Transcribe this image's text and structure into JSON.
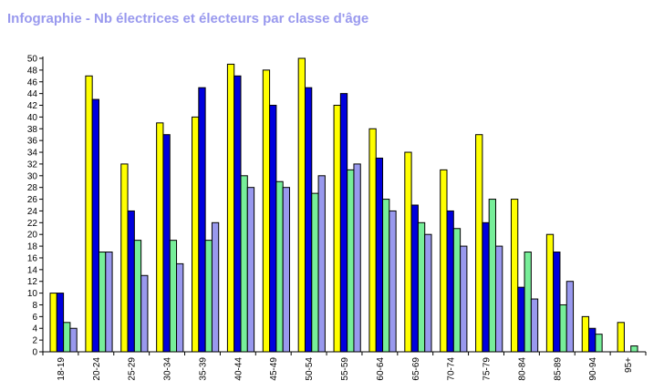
{
  "chart_data": {
    "type": "bar",
    "title": "Infographie - Nb électrices et électeurs par classe d'âge",
    "xlabel": "",
    "ylabel": "",
    "ylim": [
      0,
      50
    ],
    "yticks": [
      0,
      2,
      4,
      6,
      8,
      10,
      12,
      14,
      16,
      18,
      20,
      22,
      24,
      26,
      28,
      30,
      32,
      34,
      36,
      38,
      40,
      42,
      44,
      46,
      48,
      50
    ],
    "grid": false,
    "legend": "none",
    "categories": [
      "18-19",
      "20-24",
      "25-29",
      "30-34",
      "35-39",
      "40-44",
      "45-49",
      "50-54",
      "55-59",
      "60-64",
      "65-69",
      "70-74",
      "75-79",
      "80-84",
      "85-89",
      "90-94",
      "95+"
    ],
    "series": [
      {
        "color": "#ffff00",
        "values": [
          10,
          47,
          32,
          39,
          40,
          49,
          48,
          50,
          42,
          38,
          34,
          31,
          37,
          26,
          20,
          6,
          5
        ]
      },
      {
        "color": "#0000dd",
        "values": [
          10,
          43,
          24,
          37,
          45,
          47,
          42,
          45,
          44,
          33,
          25,
          24,
          22,
          11,
          17,
          4,
          0
        ]
      },
      {
        "color": "#77ee99",
        "values": [
          5,
          17,
          19,
          19,
          19,
          30,
          29,
          27,
          31,
          26,
          22,
          21,
          26,
          17,
          8,
          3,
          1
        ]
      },
      {
        "color": "#9999ee",
        "values": [
          4,
          17,
          13,
          15,
          22,
          28,
          28,
          30,
          32,
          24,
          20,
          18,
          18,
          9,
          12,
          0,
          0
        ]
      }
    ]
  }
}
